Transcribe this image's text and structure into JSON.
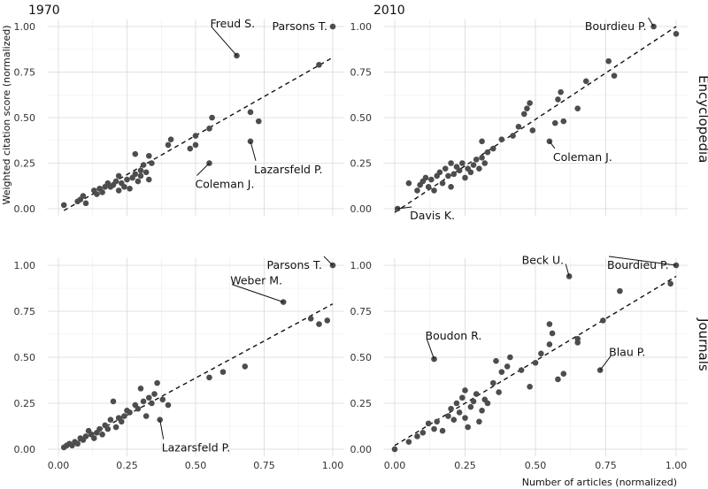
{
  "chart_data": {
    "type": "scatter",
    "xlabel": "Number of articles (normalized)",
    "ylabel": "Weighted citation score (normalized)",
    "xlim": [
      0,
      1
    ],
    "ylim": [
      0,
      1
    ],
    "xticks": [
      "0.00",
      "0.25",
      "0.50",
      "0.75",
      "1.00"
    ],
    "yticks": [
      "0.00",
      "0.25",
      "0.50",
      "0.75",
      "1.00"
    ],
    "columns": [
      "1970",
      "2010"
    ],
    "rows": [
      "Encyclopedia",
      "Journals"
    ],
    "grid": true,
    "panels": [
      {
        "column": "1970",
        "row": "Encyclopedia",
        "fit": [
          [
            0.02,
            -0.01
          ],
          [
            1.0,
            0.83
          ]
        ],
        "points": [
          [
            0.02,
            0.02
          ],
          [
            0.07,
            0.04
          ],
          [
            0.08,
            0.05
          ],
          [
            0.09,
            0.07
          ],
          [
            0.1,
            0.03
          ],
          [
            0.13,
            0.1
          ],
          [
            0.14,
            0.08
          ],
          [
            0.15,
            0.11
          ],
          [
            0.16,
            0.09
          ],
          [
            0.17,
            0.12
          ],
          [
            0.18,
            0.14
          ],
          [
            0.19,
            0.12
          ],
          [
            0.2,
            0.13
          ],
          [
            0.21,
            0.15
          ],
          [
            0.22,
            0.18
          ],
          [
            0.22,
            0.1
          ],
          [
            0.23,
            0.14
          ],
          [
            0.24,
            0.12
          ],
          [
            0.25,
            0.16
          ],
          [
            0.26,
            0.11
          ],
          [
            0.27,
            0.17
          ],
          [
            0.28,
            0.19
          ],
          [
            0.28,
            0.3
          ],
          [
            0.29,
            0.15
          ],
          [
            0.3,
            0.21
          ],
          [
            0.3,
            0.18
          ],
          [
            0.31,
            0.24
          ],
          [
            0.32,
            0.2
          ],
          [
            0.33,
            0.29
          ],
          [
            0.33,
            0.16
          ],
          [
            0.34,
            0.25
          ],
          [
            0.4,
            0.35
          ],
          [
            0.41,
            0.38
          ],
          [
            0.48,
            0.33
          ],
          [
            0.5,
            0.35
          ],
          [
            0.5,
            0.4
          ],
          [
            0.55,
            0.44
          ],
          [
            0.56,
            0.5
          ],
          [
            0.55,
            0.25
          ],
          [
            0.65,
            0.84
          ],
          [
            0.7,
            0.53
          ],
          [
            0.7,
            0.37
          ],
          [
            0.73,
            0.48
          ],
          [
            0.95,
            0.79
          ],
          [
            1.0,
            1.0
          ]
        ],
        "labels": [
          {
            "text": "Parsons T.",
            "x": 1.0,
            "y": 1.0
          },
          {
            "text": "Freud S.",
            "x": 0.65,
            "y": 0.84
          },
          {
            "text": "Lazarsfeld P.",
            "x": 0.7,
            "y": 0.37
          },
          {
            "text": "Coleman J.",
            "x": 0.55,
            "y": 0.25
          }
        ]
      },
      {
        "column": "2010",
        "row": "Encyclopedia",
        "fit": [
          [
            0.0,
            -0.02
          ],
          [
            1.0,
            1.0
          ]
        ],
        "points": [
          [
            0.01,
            0.0
          ],
          [
            0.05,
            0.14
          ],
          [
            0.08,
            0.1
          ],
          [
            0.09,
            0.13
          ],
          [
            0.1,
            0.15
          ],
          [
            0.11,
            0.17
          ],
          [
            0.12,
            0.12
          ],
          [
            0.13,
            0.16
          ],
          [
            0.14,
            0.1
          ],
          [
            0.15,
            0.18
          ],
          [
            0.16,
            0.2
          ],
          [
            0.17,
            0.14
          ],
          [
            0.18,
            0.22
          ],
          [
            0.19,
            0.18
          ],
          [
            0.2,
            0.25
          ],
          [
            0.2,
            0.12
          ],
          [
            0.21,
            0.19
          ],
          [
            0.22,
            0.23
          ],
          [
            0.23,
            0.21
          ],
          [
            0.24,
            0.25
          ],
          [
            0.25,
            0.17
          ],
          [
            0.26,
            0.22
          ],
          [
            0.27,
            0.2
          ],
          [
            0.28,
            0.24
          ],
          [
            0.29,
            0.27
          ],
          [
            0.3,
            0.22
          ],
          [
            0.31,
            0.28
          ],
          [
            0.31,
            0.37
          ],
          [
            0.32,
            0.25
          ],
          [
            0.33,
            0.31
          ],
          [
            0.35,
            0.33
          ],
          [
            0.38,
            0.38
          ],
          [
            0.42,
            0.4
          ],
          [
            0.44,
            0.45
          ],
          [
            0.46,
            0.52
          ],
          [
            0.47,
            0.55
          ],
          [
            0.48,
            0.58
          ],
          [
            0.49,
            0.43
          ],
          [
            0.55,
            0.37
          ],
          [
            0.57,
            0.47
          ],
          [
            0.58,
            0.6
          ],
          [
            0.59,
            0.64
          ],
          [
            0.6,
            0.48
          ],
          [
            0.65,
            0.55
          ],
          [
            0.68,
            0.7
          ],
          [
            0.76,
            0.81
          ],
          [
            0.78,
            0.73
          ],
          [
            0.92,
            1.0
          ],
          [
            1.0,
            0.96
          ]
        ],
        "labels": [
          {
            "text": "Bourdieu P.",
            "x": 0.92,
            "y": 1.0
          },
          {
            "text": "Coleman J.",
            "x": 0.55,
            "y": 0.37
          },
          {
            "text": "Davis K.",
            "x": 0.01,
            "y": 0.0
          }
        ]
      },
      {
        "column": "1970",
        "row": "Journals",
        "fit": [
          [
            0.02,
            0.0
          ],
          [
            1.0,
            0.79
          ]
        ],
        "points": [
          [
            0.02,
            0.01
          ],
          [
            0.03,
            0.02
          ],
          [
            0.04,
            0.03
          ],
          [
            0.05,
            0.02
          ],
          [
            0.06,
            0.04
          ],
          [
            0.07,
            0.03
          ],
          [
            0.08,
            0.06
          ],
          [
            0.09,
            0.05
          ],
          [
            0.1,
            0.07
          ],
          [
            0.11,
            0.1
          ],
          [
            0.12,
            0.08
          ],
          [
            0.13,
            0.06
          ],
          [
            0.14,
            0.09
          ],
          [
            0.15,
            0.11
          ],
          [
            0.16,
            0.08
          ],
          [
            0.17,
            0.13
          ],
          [
            0.18,
            0.11
          ],
          [
            0.19,
            0.16
          ],
          [
            0.2,
            0.26
          ],
          [
            0.21,
            0.12
          ],
          [
            0.22,
            0.17
          ],
          [
            0.23,
            0.15
          ],
          [
            0.24,
            0.18
          ],
          [
            0.25,
            0.21
          ],
          [
            0.26,
            0.2
          ],
          [
            0.28,
            0.24
          ],
          [
            0.29,
            0.22
          ],
          [
            0.3,
            0.33
          ],
          [
            0.31,
            0.26
          ],
          [
            0.32,
            0.18
          ],
          [
            0.33,
            0.28
          ],
          [
            0.34,
            0.25
          ],
          [
            0.35,
            0.3
          ],
          [
            0.36,
            0.36
          ],
          [
            0.37,
            0.16
          ],
          [
            0.38,
            0.27
          ],
          [
            0.4,
            0.24
          ],
          [
            0.55,
            0.39
          ],
          [
            0.6,
            0.42
          ],
          [
            0.68,
            0.45
          ],
          [
            0.82,
            0.8
          ],
          [
            0.92,
            0.71
          ],
          [
            0.95,
            0.68
          ],
          [
            0.98,
            0.7
          ],
          [
            1.0,
            1.0
          ]
        ],
        "labels": [
          {
            "text": "Parsons T.",
            "x": 1.0,
            "y": 1.0
          },
          {
            "text": "Weber M.",
            "x": 0.82,
            "y": 0.8
          },
          {
            "text": "Lazarsfeld P.",
            "x": 0.37,
            "y": 0.16
          }
        ]
      },
      {
        "column": "2010",
        "row": "Journals",
        "fit": [
          [
            0.0,
            0.02
          ],
          [
            1.0,
            0.94
          ]
        ],
        "points": [
          [
            0.0,
            0.0
          ],
          [
            0.05,
            0.04
          ],
          [
            0.08,
            0.07
          ],
          [
            0.1,
            0.09
          ],
          [
            0.12,
            0.14
          ],
          [
            0.14,
            0.11
          ],
          [
            0.15,
            0.15
          ],
          [
            0.17,
            0.1
          ],
          [
            0.19,
            0.18
          ],
          [
            0.2,
            0.22
          ],
          [
            0.21,
            0.16
          ],
          [
            0.22,
            0.25
          ],
          [
            0.23,
            0.2
          ],
          [
            0.24,
            0.28
          ],
          [
            0.25,
            0.32
          ],
          [
            0.25,
            0.17
          ],
          [
            0.26,
            0.12
          ],
          [
            0.27,
            0.23
          ],
          [
            0.28,
            0.26
          ],
          [
            0.29,
            0.3
          ],
          [
            0.3,
            0.15
          ],
          [
            0.31,
            0.21
          ],
          [
            0.32,
            0.27
          ],
          [
            0.33,
            0.25
          ],
          [
            0.35,
            0.36
          ],
          [
            0.36,
            0.48
          ],
          [
            0.37,
            0.31
          ],
          [
            0.38,
            0.42
          ],
          [
            0.4,
            0.45
          ],
          [
            0.41,
            0.5
          ],
          [
            0.45,
            0.43
          ],
          [
            0.48,
            0.34
          ],
          [
            0.5,
            0.47
          ],
          [
            0.52,
            0.52
          ],
          [
            0.55,
            0.68
          ],
          [
            0.55,
            0.57
          ],
          [
            0.56,
            0.63
          ],
          [
            0.58,
            0.38
          ],
          [
            0.6,
            0.41
          ],
          [
            0.65,
            0.58
          ],
          [
            0.65,
            0.6
          ],
          [
            0.74,
            0.7
          ],
          [
            0.8,
            0.86
          ],
          [
            0.98,
            0.9
          ],
          [
            0.62,
            0.94
          ],
          [
            0.14,
            0.49
          ],
          [
            0.73,
            0.43
          ],
          [
            1.0,
            1.0
          ]
        ],
        "labels": [
          {
            "text": "Beck U.",
            "x": 0.62,
            "y": 0.94
          },
          {
            "text": "Bourdieu P.",
            "x": 1.0,
            "y": 1.0
          },
          {
            "text": "Boudon R.",
            "x": 0.14,
            "y": 0.49
          },
          {
            "text": "Blau P.",
            "x": 0.73,
            "y": 0.43
          }
        ]
      }
    ]
  }
}
